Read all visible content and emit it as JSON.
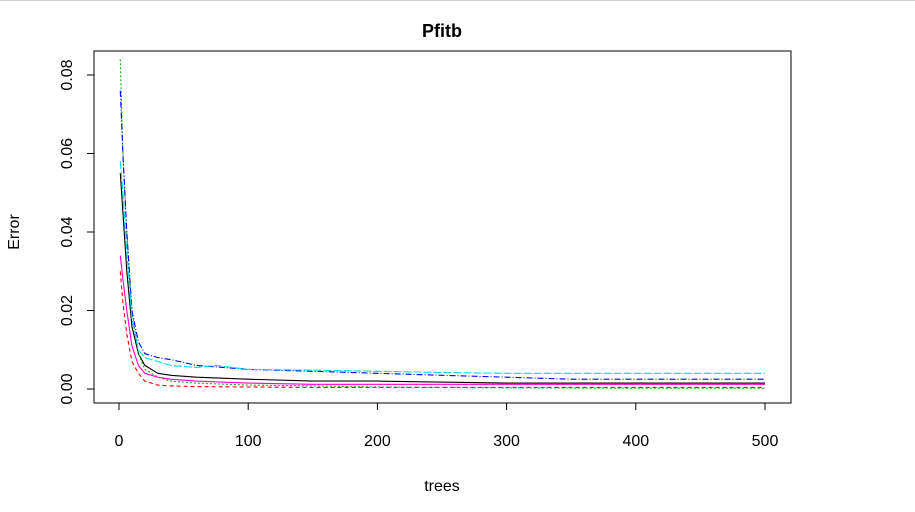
{
  "chart_data": {
    "type": "line",
    "title": "Pfitb",
    "xlabel": "trees",
    "ylabel": "Error",
    "xlim": [
      0,
      500
    ],
    "ylim": [
      -0.0035,
      0.087
    ],
    "xticks": [
      0,
      100,
      200,
      300,
      400,
      500
    ],
    "xtick_labels": [
      "0",
      "100",
      "200",
      "300",
      "400",
      "500"
    ],
    "yticks": [
      0,
      0.02,
      0.04,
      0.06,
      0.08
    ],
    "ytick_labels": [
      "0.00",
      "0.02",
      "0.04",
      "0.06",
      "0.08"
    ],
    "grid": false,
    "legend": "none",
    "series": [
      {
        "color": "#000000",
        "dash": "solid",
        "points": [
          [
            1,
            0.055
          ],
          [
            3,
            0.045
          ],
          [
            6,
            0.03
          ],
          [
            10,
            0.016
          ],
          [
            15,
            0.009
          ],
          [
            20,
            0.006
          ],
          [
            30,
            0.004
          ],
          [
            40,
            0.0035
          ],
          [
            60,
            0.003
          ],
          [
            100,
            0.0025
          ],
          [
            150,
            0.002
          ],
          [
            200,
            0.002
          ],
          [
            300,
            0.0015
          ],
          [
            400,
            0.0015
          ],
          [
            500,
            0.0015
          ]
        ]
      },
      {
        "color": "#ff0000",
        "dash": "4,3",
        "points": [
          [
            1,
            0.03
          ],
          [
            3,
            0.022
          ],
          [
            6,
            0.014
          ],
          [
            10,
            0.007
          ],
          [
            15,
            0.004
          ],
          [
            20,
            0.002
          ],
          [
            30,
            0.001
          ],
          [
            40,
            0.0008
          ],
          [
            60,
            0.0006
          ],
          [
            100,
            0.0005
          ],
          [
            150,
            0.0004
          ],
          [
            200,
            0.0004
          ],
          [
            300,
            0.0004
          ],
          [
            400,
            0.0004
          ],
          [
            500,
            0.0004
          ]
        ]
      },
      {
        "color": "#00bb00",
        "dash": "2,2",
        "points": [
          [
            1,
            0.084
          ],
          [
            3,
            0.06
          ],
          [
            6,
            0.04
          ],
          [
            10,
            0.02
          ],
          [
            15,
            0.009
          ],
          [
            20,
            0.005
          ],
          [
            30,
            0.003
          ],
          [
            40,
            0.002
          ],
          [
            60,
            0.0015
          ],
          [
            100,
            0.001
          ],
          [
            150,
            0.0008
          ],
          [
            200,
            0.0005
          ],
          [
            300,
            0.0003
          ],
          [
            400,
            0.0002
          ],
          [
            500,
            0.0002
          ]
        ]
      },
      {
        "color": "#0000ff",
        "dash": "6,2,1,2",
        "points": [
          [
            1,
            0.076
          ],
          [
            3,
            0.06
          ],
          [
            6,
            0.04
          ],
          [
            10,
            0.02
          ],
          [
            15,
            0.012
          ],
          [
            20,
            0.009
          ],
          [
            30,
            0.008
          ],
          [
            40,
            0.0075
          ],
          [
            60,
            0.006
          ],
          [
            100,
            0.005
          ],
          [
            150,
            0.0045
          ],
          [
            200,
            0.004
          ],
          [
            250,
            0.0035
          ],
          [
            300,
            0.003
          ],
          [
            350,
            0.0025
          ],
          [
            400,
            0.0025
          ],
          [
            450,
            0.0025
          ],
          [
            500,
            0.0025
          ]
        ]
      },
      {
        "color": "#00dddd",
        "dash": "8,2",
        "points": [
          [
            1,
            0.058
          ],
          [
            3,
            0.05
          ],
          [
            6,
            0.035
          ],
          [
            10,
            0.018
          ],
          [
            15,
            0.01
          ],
          [
            20,
            0.008
          ],
          [
            30,
            0.007
          ],
          [
            40,
            0.006
          ],
          [
            60,
            0.0055
          ],
          [
            75,
            0.006
          ],
          [
            100,
            0.005
          ],
          [
            150,
            0.0048
          ],
          [
            200,
            0.0045
          ],
          [
            250,
            0.0042
          ],
          [
            300,
            0.004
          ],
          [
            400,
            0.004
          ],
          [
            500,
            0.004
          ]
        ]
      },
      {
        "color": "#ff00cc",
        "dash": "solid",
        "points": [
          [
            1,
            0.034
          ],
          [
            3,
            0.028
          ],
          [
            6,
            0.02
          ],
          [
            10,
            0.011
          ],
          [
            15,
            0.006
          ],
          [
            20,
            0.004
          ],
          [
            30,
            0.003
          ],
          [
            40,
            0.0025
          ],
          [
            60,
            0.002
          ],
          [
            100,
            0.0015
          ],
          [
            150,
            0.0012
          ],
          [
            200,
            0.0012
          ],
          [
            300,
            0.0012
          ],
          [
            400,
            0.0012
          ],
          [
            500,
            0.0012
          ]
        ]
      }
    ]
  }
}
